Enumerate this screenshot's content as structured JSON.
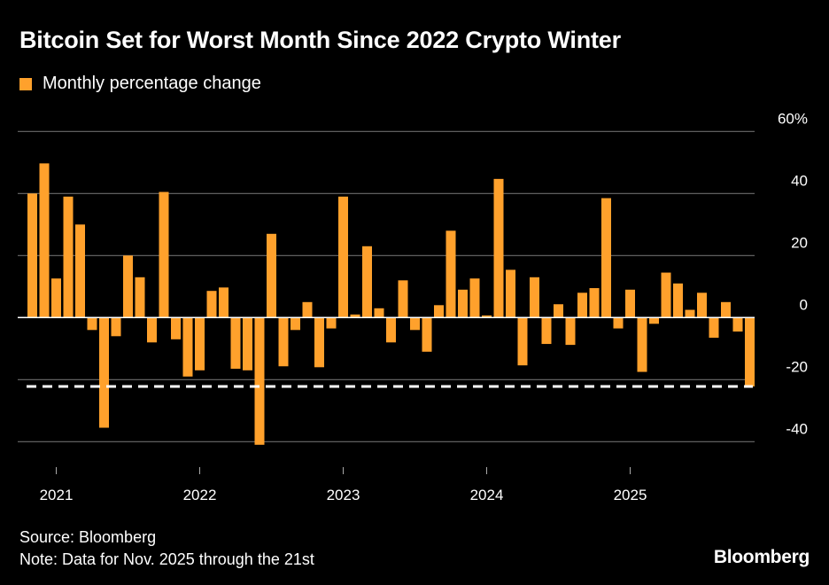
{
  "chart_data": {
    "type": "bar",
    "title": "Bitcoin Set for Worst Month Since 2022 Crypto Winter",
    "series": [
      {
        "name": "Monthly percentage change",
        "color": "#ffa12c",
        "categories": [
          "Nov 2020",
          "Dec 2020",
          "Jan 2021",
          "Feb 2021",
          "Mar 2021",
          "Apr 2021",
          "May 2021",
          "Jun 2021",
          "Jul 2021",
          "Aug 2021",
          "Sep 2021",
          "Oct 2021",
          "Nov 2021",
          "Dec 2021",
          "Jan 2022",
          "Feb 2022",
          "Mar 2022",
          "Apr 2022",
          "May 2022",
          "Jun 2022",
          "Jul 2022",
          "Aug 2022",
          "Sep 2022",
          "Oct 2022",
          "Nov 2022",
          "Dec 2022",
          "Jan 2023",
          "Feb 2023",
          "Mar 2023",
          "Apr 2023",
          "May 2023",
          "Jun 2023",
          "Jul 2023",
          "Aug 2023",
          "Sep 2023",
          "Oct 2023",
          "Nov 2023",
          "Dec 2023",
          "Jan 2024",
          "Feb 2024",
          "Mar 2024",
          "Apr 2024",
          "May 2024",
          "Jun 2024",
          "Jul 2024",
          "Aug 2024",
          "Sep 2024",
          "Oct 2024",
          "Nov 2024",
          "Dec 2024",
          "Jan 2025",
          "Feb 2025",
          "Mar 2025",
          "Apr 2025",
          "May 2025",
          "Jun 2025",
          "Jul 2025",
          "Aug 2025",
          "Sep 2025",
          "Oct 2025",
          "Nov 2025"
        ],
        "values": [
          40,
          49.7,
          12.6,
          39,
          30,
          -4,
          -35.5,
          -6,
          20,
          13,
          -8,
          40.5,
          -7,
          -19,
          -17,
          8.6,
          9.7,
          -16.5,
          -17,
          -41,
          27,
          -15.7,
          -4,
          5,
          -16,
          -3.5,
          39,
          1,
          23,
          3,
          -8,
          12,
          -4,
          -11,
          4,
          28,
          9,
          12.6,
          0.7,
          44.7,
          15.4,
          -15.4,
          13,
          -8.5,
          4.3,
          -8.8,
          8,
          9.5,
          38.5,
          -3.5,
          9,
          -17.5,
          -2,
          14.5,
          11,
          2.5,
          8,
          -6.5,
          5,
          -4.5,
          -22.2
        ]
      }
    ],
    "reference_line": {
      "value": -22.2,
      "style": "dashed",
      "color": "#ffffff"
    },
    "xticks": [
      {
        "label": "2021",
        "month": "Jan 2021"
      },
      {
        "label": "2022",
        "month": "Jan 2022"
      },
      {
        "label": "2023",
        "month": "Jan 2023"
      },
      {
        "label": "2024",
        "month": "Jan 2024"
      },
      {
        "label": "2025",
        "month": "Jan 2025"
      }
    ],
    "yticks": [
      60,
      40,
      20,
      0,
      -20,
      -40
    ],
    "ytick_labels": [
      "60%",
      "40",
      "20",
      "0",
      "-20",
      "-40"
    ],
    "ylim": [
      -45,
      60
    ],
    "grid": true,
    "legend_position": "top-left",
    "y_axis_side": "right"
  },
  "legend_label": "Monthly percentage change",
  "footer": {
    "source": "Source: Bloomberg",
    "note": "Note: Data for Nov. 2025 through the 21st"
  },
  "logo": "Bloomberg"
}
